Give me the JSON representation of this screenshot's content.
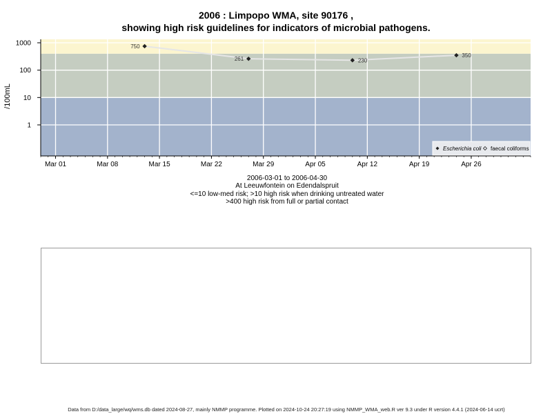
{
  "chart_data": {
    "type": "scatter",
    "title": "2006 : Limpopo WMA, site 90176 ,",
    "subtitle": "showing high risk guidelines for indicators of microbial pathogens.",
    "ylabel": "/100mL",
    "y_scale": "log",
    "y_ticks": [
      "1000",
      "100",
      "10",
      "1"
    ],
    "y_tick_values": [
      1000,
      100,
      10,
      1
    ],
    "x_ticks": [
      "Mar 01",
      "Mar 08",
      "Mar 15",
      "Mar 22",
      "Mar 29",
      "Apr 05",
      "Apr 12",
      "Apr 19",
      "Apr 26"
    ],
    "x_tick_dates": [
      "2006-03-01",
      "2006-03-08",
      "2006-03-15",
      "2006-03-22",
      "2006-03-29",
      "2006-04-05",
      "2006-04-12",
      "2006-04-19",
      "2006-04-26"
    ],
    "x_range": [
      "2006-02-27",
      "2006-05-04"
    ],
    "grid": true,
    "legend_position": "bottom-right",
    "risk_bands": [
      {
        "label": "<=10 low-med risk",
        "from": 0,
        "to": 10,
        "color": "#a3b3cc"
      },
      {
        "label": ">10 high risk when drinking untreated water",
        "from": 10,
        "to": 400,
        "color": "#c5cdc1"
      },
      {
        "label": ">400 high risk from full or partial contact",
        "from": 400,
        "to": 1000,
        "color": "#fcf5cf"
      }
    ],
    "series": [
      {
        "name": "Escherichia coli",
        "marker": "filled-diamond",
        "color": "#222222",
        "points": [
          {
            "x": "2006-03-13",
            "y": 750,
            "label": "750"
          },
          {
            "x": "2006-03-27",
            "y": 261,
            "label": "261"
          },
          {
            "x": "2006-04-10",
            "y": 230,
            "label": "230"
          },
          {
            "x": "2006-04-24",
            "y": 350,
            "label": "350"
          }
        ]
      },
      {
        "name": "faecal coliforms",
        "marker": "open-diamond",
        "color": "#222222",
        "points": []
      }
    ]
  },
  "caption": {
    "date_range": "2006-03-01 to 2006-04-30",
    "location": "At Leeuwfontein on Edendalspruit",
    "risk_line_1": "<=10 low-med risk; >10 high risk when drinking untreated water",
    "risk_line_2": ">400 high risk from full or partial contact"
  },
  "footer": "Data from D:/data_large/wq/wms.db dated 2024-08-27, mainly NMMP programme. Plotted on 2024-10-24 20:27:19 using NMMP_WMA_web.R ver 9.3 under R version 4.4.1 (2024-06-14 ucrt)"
}
